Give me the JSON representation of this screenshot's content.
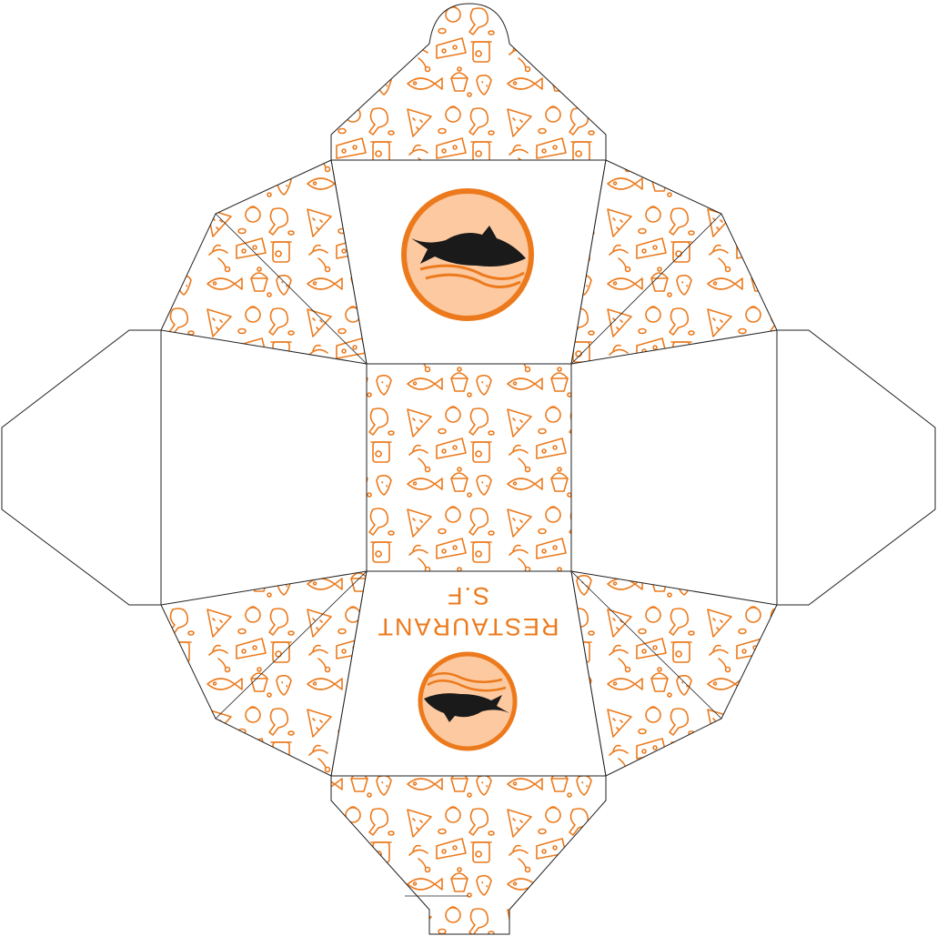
{
  "brand": {
    "name": "RESTAURANT",
    "initials": "S.F"
  },
  "colors": {
    "accent": "#ec7a1c",
    "logo_fill": "#fdc9a0",
    "fish": "#1a1a1a",
    "outline": "#222222",
    "paper": "#ffffff"
  },
  "icons": {
    "logo": "fish-logo-icon",
    "pattern": "food-doodle-pattern"
  }
}
